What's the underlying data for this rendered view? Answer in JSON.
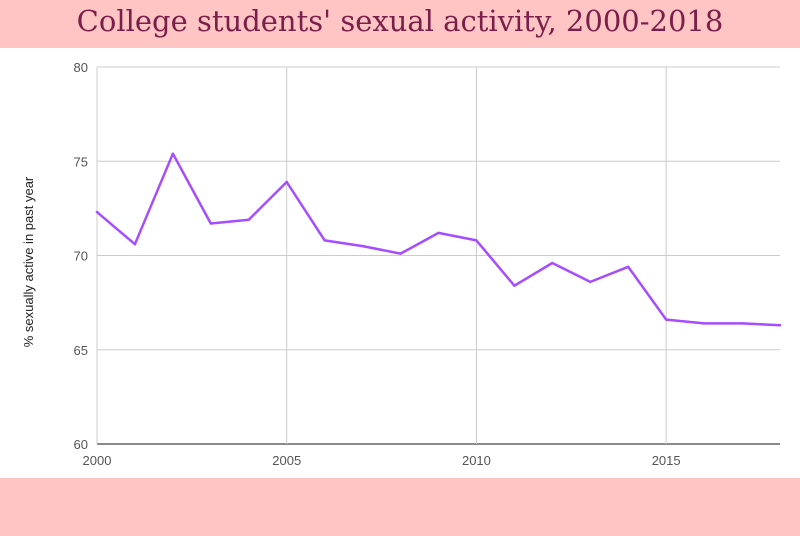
{
  "chart_data": {
    "type": "line",
    "title": "College students' sexual activity, 2000-2018",
    "ylabel": "% sexually active in past year",
    "xlim": [
      2000,
      2018
    ],
    "ylim": [
      60,
      80
    ],
    "x_ticks": [
      "2000",
      "2005",
      "2010",
      "2015"
    ],
    "y_ticks": [
      "60",
      "65",
      "70",
      "75",
      "80"
    ],
    "grid": true,
    "line_color": "#a64dff",
    "series": [
      {
        "x": [
          2000,
          2001,
          2002,
          2003,
          2004,
          2005,
          2006,
          2007,
          2008,
          2009,
          2010,
          2011,
          2012,
          2013,
          2014,
          2015,
          2016,
          2017,
          2018
        ],
        "values": [
          72.3,
          70.6,
          75.4,
          71.7,
          71.9,
          73.9,
          70.8,
          70.5,
          70.1,
          71.2,
          70.8,
          68.4,
          69.6,
          68.6,
          69.4,
          66.6,
          66.4,
          66.4,
          66.3
        ]
      }
    ]
  }
}
